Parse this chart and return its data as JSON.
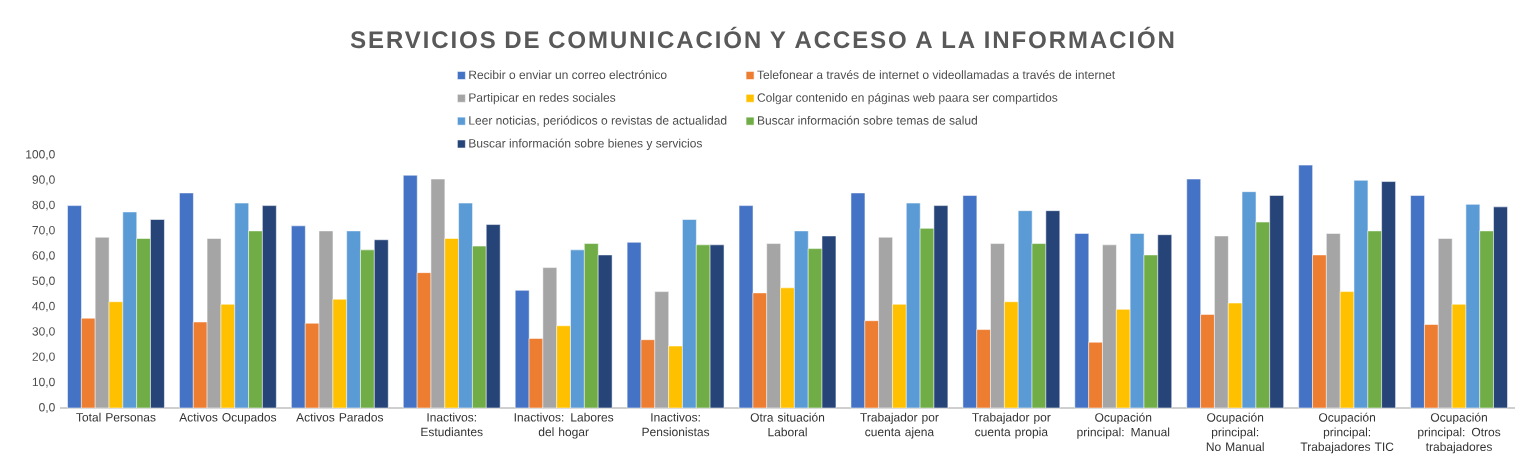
{
  "chart_data": {
    "type": "bar",
    "title": "SERVICIOS DE COMUNICACIÓN Y ACCESO A LA INFORMACIÓN",
    "categories": [
      "Total Personas",
      "Activos Ocupados",
      "Activos Parados",
      "Inactivos: Estudiantes",
      "Inactivos: Labores del hogar",
      "Inactivos: Pensionistas",
      "Otra situación Laboral",
      "Trabajador por cuenta ajena",
      "Trabajador por cuenta propia",
      "Ocupación principal: Manual",
      "Ocupación principal: No Manual",
      "Ocupación principal: Trabajadores TIC",
      "Ocupación principal: Otros trabajadores"
    ],
    "series": [
      {
        "name": "Recibir o enviar un correo electrónico",
        "color": "#4472c4",
        "values": [
          80,
          85,
          72,
          92,
          46.5,
          65.5,
          80,
          85,
          84,
          69,
          90.5,
          96,
          84
        ]
      },
      {
        "name": "Telefonear a través de internet o videollamadas a través de internet",
        "color": "#ed7d31",
        "values": [
          35.5,
          34,
          33.5,
          53.5,
          27.5,
          27,
          45.5,
          34.5,
          31,
          26,
          37,
          60.5,
          33
        ]
      },
      {
        "name": "Partipicar en redes sociales",
        "color": "#a5a5a5",
        "values": [
          67.5,
          67,
          70,
          90.5,
          55.5,
          46,
          65,
          67.5,
          65,
          64.5,
          68,
          69,
          67
        ]
      },
      {
        "name": "Colgar contenido en páginas web paara ser compartidos",
        "color": "#ffc000",
        "values": [
          42,
          41,
          43,
          67,
          32.5,
          24.5,
          47.5,
          41,
          42,
          39,
          41.5,
          46,
          41
        ]
      },
      {
        "name": "Leer noticias, periódicos o revistas de actualidad",
        "color": "#5b9bd5",
        "values": [
          77.5,
          81,
          70,
          81,
          62.5,
          74.5,
          70,
          81,
          78,
          69,
          85.5,
          90,
          80.5
        ]
      },
      {
        "name": "Buscar información sobre temas de salud",
        "color": "#70ad47",
        "values": [
          67,
          70,
          62.5,
          64,
          65,
          64.5,
          63,
          71,
          65,
          60.5,
          73.5,
          70,
          70
        ]
      },
      {
        "name": "Buscar información sobre bienes y servicios",
        "color": "#264478",
        "values": [
          74.5,
          80,
          66.5,
          72.5,
          60.5,
          64.5,
          68,
          80,
          78,
          68.5,
          84,
          89.5,
          79.5
        ]
      }
    ],
    "ylim": [
      0,
      100
    ],
    "yticks": [
      {
        "value": 0,
        "label": "0,0"
      },
      {
        "value": 10,
        "label": "10,0"
      },
      {
        "value": 20,
        "label": "20,0"
      },
      {
        "value": 30,
        "label": "30,0"
      },
      {
        "value": 40,
        "label": "40,0"
      },
      {
        "value": 50,
        "label": "50,0"
      },
      {
        "value": 60,
        "label": "60,0"
      },
      {
        "value": 70,
        "label": "70,0"
      },
      {
        "value": 80,
        "label": "80,0"
      },
      {
        "value": 90,
        "label": "90,0"
      },
      {
        "value": 100,
        "label": "100,0"
      }
    ],
    "legend": "top"
  }
}
